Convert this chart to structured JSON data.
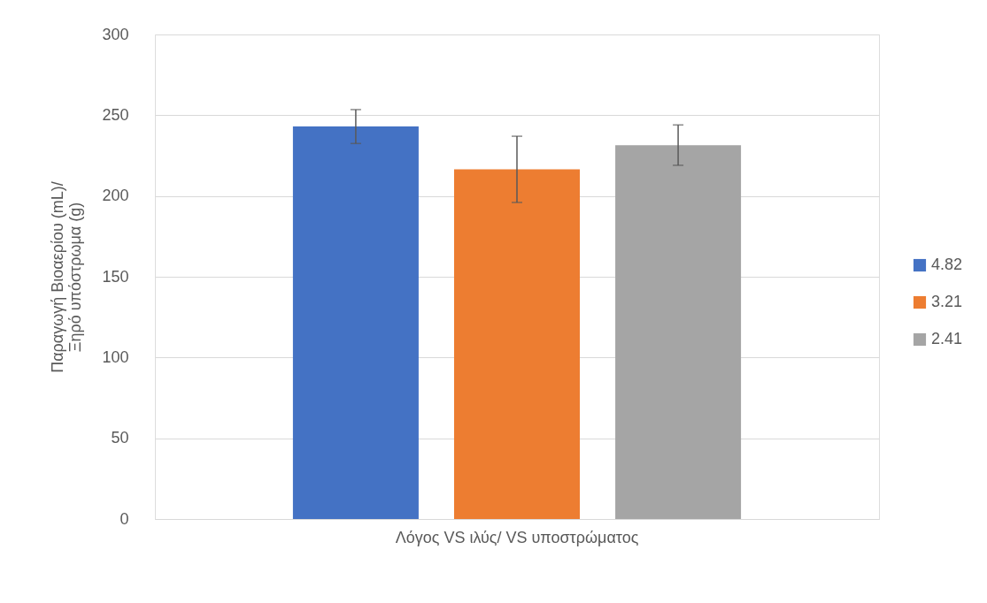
{
  "chart_data": {
    "type": "bar",
    "ylabel": "Παραγωγή Βιοαερίου (mL)/\nΞηρό υπόστρωμα (g)",
    "categories": [
      "Λόγος VS ιλύς/ VS υποστρώματος"
    ],
    "series": [
      {
        "name": "4.82",
        "color": "#4472c4",
        "values": [
          243
        ],
        "errors": [
          10.5
        ]
      },
      {
        "name": "3.21",
        "color": "#ed7d31",
        "values": [
          216.5
        ],
        "errors": [
          20.5
        ]
      },
      {
        "name": "2.41",
        "color": "#a5a5a5",
        "values": [
          231.5
        ],
        "errors": [
          12.5
        ]
      }
    ],
    "ylim": [
      0,
      300
    ],
    "yticks": [
      0,
      50,
      100,
      150,
      200,
      250,
      300
    ],
    "grid": "y",
    "legend": "right"
  }
}
